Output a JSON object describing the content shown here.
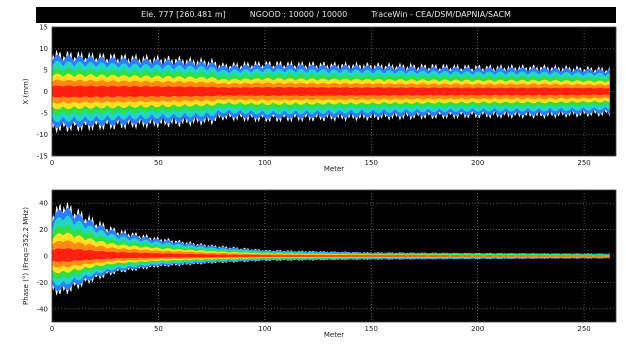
{
  "header": {
    "element": "Ele. 777 [260.481 m]",
    "ngood": "NGOOD : 10000 / 10000",
    "software": "TraceWin - CEA/DSM/DAPNIA/SACM"
  },
  "colors": {
    "background": "#000000",
    "envelope": "#ffffff",
    "bands": [
      "#2a7dff",
      "#1fd6c7",
      "#30e040",
      "#ffe020",
      "#ff8a10",
      "#ff2010"
    ]
  },
  "chart_data": [
    {
      "type": "area",
      "title": "",
      "xlabel": "Meter",
      "ylabel": "X (mm)",
      "xlim": [
        0,
        265
      ],
      "ylim": [
        -15,
        15
      ],
      "xticks": [
        0,
        50,
        100,
        150,
        200,
        250
      ],
      "yticks": [
        -15,
        -10,
        -5,
        0,
        5,
        10,
        15
      ],
      "grid": true,
      "series": [
        {
          "description_key": "envelope_max",
          "x": [
            0,
            20,
            40,
            60,
            75,
            80,
            100,
            150,
            200,
            230,
            260
          ],
          "values": [
            10,
            9.5,
            9,
            8.5,
            8,
            7,
            7.5,
            7,
            6.5,
            6.5,
            6
          ]
        },
        {
          "description_key": "envelope_min",
          "x": [
            0,
            20,
            40,
            60,
            75,
            80,
            100,
            150,
            200,
            230,
            260
          ],
          "values": [
            -10,
            -9.5,
            -9,
            -8.5,
            -8,
            -7,
            -7.5,
            -7,
            -6.5,
            -6.5,
            -6
          ]
        }
      ]
    },
    {
      "type": "area",
      "title": "",
      "xlabel": "Meter",
      "ylabel": "Phase (°)   (Freq=352.2 MHz)",
      "xlim": [
        0,
        265
      ],
      "ylim": [
        -50,
        50
      ],
      "xticks": [
        0,
        50,
        100,
        150,
        200,
        250
      ],
      "yticks": [
        -40,
        -20,
        0,
        20,
        40
      ],
      "grid": true,
      "series": [
        {
          "description_key": "envelope_max",
          "x": [
            0,
            5,
            10,
            20,
            30,
            50,
            75,
            100,
            150,
            200,
            260
          ],
          "values": [
            35,
            45,
            40,
            30,
            22,
            15,
            9,
            5,
            3,
            2.5,
            2
          ]
        },
        {
          "description_key": "envelope_min",
          "x": [
            0,
            5,
            10,
            20,
            30,
            50,
            75,
            100,
            150,
            200,
            260
          ],
          "values": [
            -30,
            -32,
            -28,
            -20,
            -14,
            -9,
            -6,
            -4,
            -3,
            -2.5,
            -2
          ]
        }
      ]
    }
  ]
}
